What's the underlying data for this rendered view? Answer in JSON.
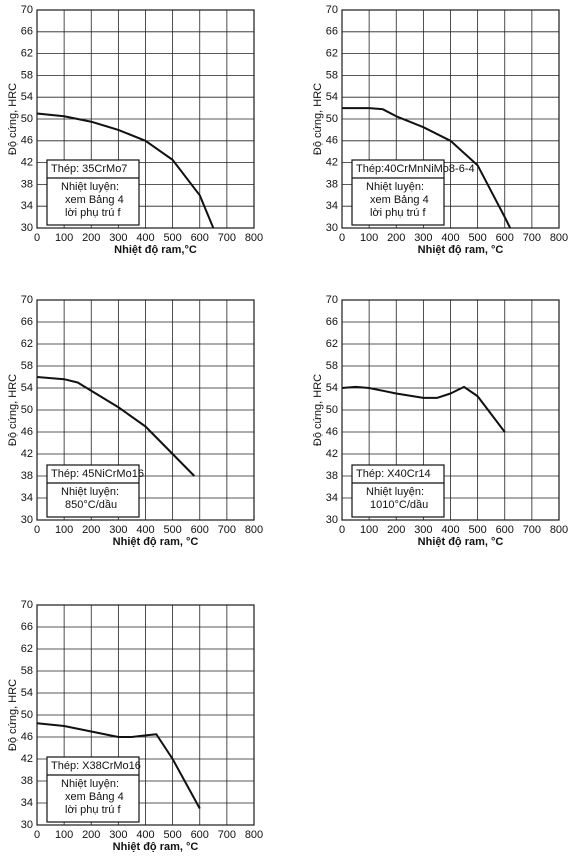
{
  "chart_data": [
    {
      "type": "line",
      "title": null,
      "x_label": "Nhiệt độ ram,°C",
      "y_label": "Độ cứng, HRC",
      "x": [
        0,
        100,
        200,
        300,
        400,
        500,
        600,
        650
      ],
      "series": [
        {
          "name": "Thép: 35CrMo7",
          "color": "#111111",
          "values": [
            51,
            50.5,
            49.5,
            48,
            46,
            42.5,
            36,
            30
          ]
        }
      ],
      "notes": [
        "Nhiệt luyện:",
        "xem Bảng 4",
        "lời phụ trú f"
      ],
      "xlim": [
        0,
        800
      ],
      "xticks": [
        0,
        100,
        200,
        300,
        400,
        500,
        600,
        700,
        800
      ],
      "ylim": [
        30,
        70
      ],
      "yticks": [
        30,
        34,
        38,
        42,
        46,
        50,
        54,
        58,
        62,
        66,
        70
      ],
      "grid": true
    },
    {
      "type": "line",
      "x_label": "Nhiệt độ ram, °C",
      "y_label": "Độ cứng, HRC",
      "x": [
        0,
        100,
        150,
        200,
        300,
        400,
        500,
        600,
        620
      ],
      "series": [
        {
          "name": "Thép:40CrMnNiMo8-6-4",
          "color": "#111111",
          "values": [
            52,
            52,
            51.8,
            50.5,
            48.5,
            46,
            41.5,
            32,
            30
          ]
        }
      ],
      "notes": [
        "Nhiệt luyện:",
        "xem Bảng 4",
        "lời phụ trú f"
      ],
      "xlim": [
        0,
        800
      ],
      "xticks": [
        0,
        100,
        200,
        300,
        400,
        500,
        600,
        700,
        800
      ],
      "ylim": [
        30,
        70
      ],
      "yticks": [
        30,
        34,
        38,
        42,
        46,
        50,
        54,
        58,
        62,
        66,
        70
      ],
      "grid": true
    },
    {
      "type": "line",
      "x_label": "Nhiệt độ ram, °C",
      "y_label": "Độ cứng, HRC",
      "x": [
        0,
        100,
        150,
        200,
        300,
        400,
        500,
        580
      ],
      "series": [
        {
          "name": "Thép: 45NiCrMo16",
          "color": "#111111",
          "values": [
            56,
            55.6,
            55,
            53.5,
            50.5,
            47,
            42,
            38
          ]
        }
      ],
      "notes": [
        "Nhiệt luyện:",
        "850°C/dầu"
      ],
      "xlim": [
        0,
        800
      ],
      "xticks": [
        0,
        100,
        200,
        300,
        400,
        500,
        600,
        700,
        800
      ],
      "ylim": [
        30,
        70
      ],
      "yticks": [
        30,
        34,
        38,
        42,
        46,
        50,
        54,
        58,
        62,
        66,
        70
      ],
      "grid": true
    },
    {
      "type": "line",
      "x_label": "Nhiệt độ ram, °C",
      "y_label": "Độ cứng, HRC",
      "x": [
        0,
        50,
        100,
        200,
        300,
        350,
        400,
        450,
        500,
        600
      ],
      "series": [
        {
          "name": "Thép: X40Cr14",
          "color": "#111111",
          "values": [
            54,
            54.2,
            54,
            53,
            52.2,
            52.2,
            53,
            54.2,
            52.5,
            46
          ]
        }
      ],
      "notes": [
        "Nhiệt luyện:",
        "1010°C/dầu"
      ],
      "xlim": [
        0,
        800
      ],
      "xticks": [
        0,
        100,
        200,
        300,
        400,
        500,
        600,
        700,
        800
      ],
      "ylim": [
        30,
        70
      ],
      "yticks": [
        30,
        34,
        38,
        42,
        46,
        50,
        54,
        58,
        62,
        66,
        70
      ],
      "grid": true
    },
    {
      "type": "line",
      "x_label": "Nhiệt độ ram, °C",
      "y_label": "Độ cứng, HRC",
      "x": [
        0,
        100,
        200,
        300,
        350,
        400,
        440,
        500,
        600
      ],
      "series": [
        {
          "name": "Thép: X38CrMo16",
          "color": "#111111",
          "values": [
            48.5,
            48,
            47,
            46,
            46,
            46.3,
            46.5,
            42,
            33
          ]
        }
      ],
      "notes": [
        "Nhiệt luyện:",
        "xem Bảng 4",
        "lời phụ trú f"
      ],
      "xlim": [
        0,
        800
      ],
      "xticks": [
        0,
        100,
        200,
        300,
        400,
        500,
        600,
        700,
        800
      ],
      "ylim": [
        30,
        70
      ],
      "yticks": [
        30,
        34,
        38,
        42,
        46,
        50,
        54,
        58,
        62,
        66,
        70
      ],
      "grid": true
    }
  ]
}
